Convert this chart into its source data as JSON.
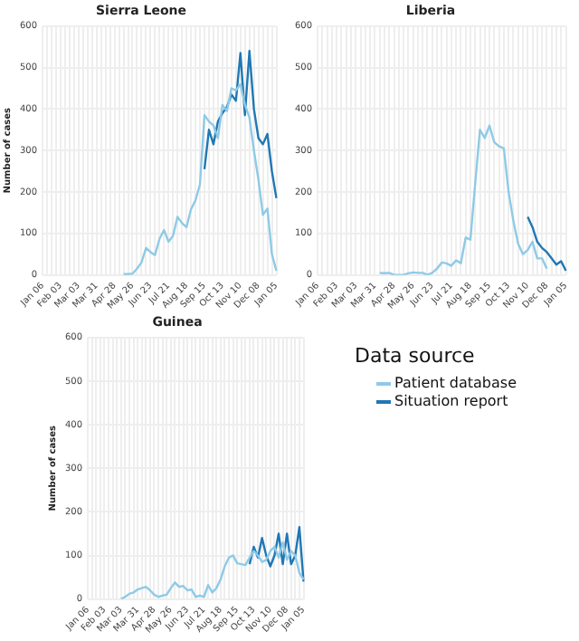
{
  "chart_data": [
    {
      "type": "line",
      "title": "Sierra Leone",
      "ylabel": "Number of cases",
      "ylim": [
        0,
        600
      ],
      "categories": [
        "Jan 06",
        null,
        null,
        null,
        "Feb 03",
        null,
        null,
        null,
        "Mar 03",
        null,
        null,
        null,
        "Mar 31",
        null,
        null,
        null,
        "Apr 28",
        null,
        null,
        null,
        "May 26",
        null,
        null,
        null,
        "Jun 23",
        null,
        null,
        null,
        "Jul 21",
        null,
        null,
        null,
        "Aug 18",
        null,
        null,
        null,
        "Sep 15",
        null,
        null,
        null,
        "Oct 13",
        null,
        null,
        null,
        "Nov 10",
        null,
        null,
        null,
        "Dec 08",
        null,
        null,
        null,
        "Jan 05"
      ],
      "yticks": [
        0,
        100,
        200,
        300,
        400,
        500,
        600
      ],
      "grid": true,
      "marker": "none",
      "line_style": "solid",
      "series": [
        {
          "color": "#8ecae6",
          "values": [
            null,
            null,
            null,
            null,
            null,
            null,
            null,
            null,
            null,
            null,
            null,
            null,
            null,
            null,
            null,
            null,
            null,
            null,
            2,
            2,
            3,
            15,
            30,
            65,
            55,
            48,
            87,
            108,
            80,
            94,
            140,
            125,
            115,
            158,
            180,
            218,
            385,
            370,
            360,
            330,
            410,
            395,
            450,
            445,
            460,
            410,
            380,
            300,
            230,
            145,
            160,
            50,
            10
          ]
        },
        {
          "color": "#1f78b4",
          "values": [
            null,
            null,
            null,
            null,
            null,
            null,
            null,
            null,
            null,
            null,
            null,
            null,
            null,
            null,
            null,
            null,
            null,
            null,
            null,
            null,
            null,
            null,
            null,
            null,
            null,
            null,
            null,
            null,
            null,
            null,
            null,
            null,
            null,
            null,
            null,
            null,
            255,
            350,
            315,
            370,
            390,
            405,
            435,
            420,
            535,
            385,
            540,
            400,
            330,
            315,
            340,
            250,
            185
          ]
        }
      ]
    },
    {
      "type": "line",
      "title": "Liberia",
      "ylim": [
        0,
        600
      ],
      "categories": [
        "Jan 06",
        null,
        null,
        null,
        "Feb 03",
        null,
        null,
        null,
        "Mar 03",
        null,
        null,
        null,
        "Mar 31",
        null,
        null,
        null,
        "Apr 28",
        null,
        null,
        null,
        "May 26",
        null,
        null,
        null,
        "Jun 23",
        null,
        null,
        null,
        "Jul 21",
        null,
        null,
        null,
        "Aug 18",
        null,
        null,
        null,
        "Sep 15",
        null,
        null,
        null,
        "Oct 13",
        null,
        null,
        null,
        "Nov 10",
        null,
        null,
        null,
        "Dec 08",
        null,
        null,
        null,
        "Jan 05"
      ],
      "yticks": [
        0,
        100,
        200,
        300,
        400,
        500,
        600
      ],
      "grid": true,
      "marker": "none",
      "line_style": "solid",
      "series": [
        {
          "color": "#8ecae6",
          "values": [
            null,
            null,
            null,
            null,
            null,
            null,
            null,
            null,
            null,
            null,
            null,
            null,
            null,
            5,
            4,
            5,
            0,
            0,
            0,
            4,
            6,
            5,
            5,
            0,
            5,
            15,
            30,
            28,
            22,
            35,
            28,
            90,
            85,
            220,
            350,
            330,
            360,
            320,
            310,
            305,
            200,
            130,
            75,
            50,
            60,
            80,
            40,
            40,
            15,
            null,
            null,
            null,
            null
          ]
        },
        {
          "color": "#1f78b4",
          "values": [
            null,
            null,
            null,
            null,
            null,
            null,
            null,
            null,
            null,
            null,
            null,
            null,
            null,
            null,
            null,
            null,
            null,
            null,
            null,
            null,
            null,
            null,
            null,
            null,
            null,
            null,
            null,
            null,
            null,
            null,
            null,
            null,
            null,
            null,
            null,
            null,
            null,
            null,
            null,
            null,
            null,
            null,
            null,
            null,
            140,
            115,
            80,
            65,
            55,
            40,
            25,
            33,
            10
          ]
        }
      ]
    },
    {
      "type": "line",
      "title": "Guinea",
      "ylabel": "Number of cases",
      "ylim": [
        0,
        600
      ],
      "categories": [
        "Jan 06",
        null,
        null,
        null,
        "Feb 03",
        null,
        null,
        null,
        "Mar 03",
        null,
        null,
        null,
        "Mar 31",
        null,
        null,
        null,
        "Apr 28",
        null,
        null,
        null,
        "May 26",
        null,
        null,
        null,
        "Jun 23",
        null,
        null,
        null,
        "Jul 21",
        null,
        null,
        null,
        "Aug 18",
        null,
        null,
        null,
        "Sep 15",
        null,
        null,
        null,
        "Oct 13",
        null,
        null,
        null,
        "Nov 10",
        null,
        null,
        null,
        "Dec 08",
        null,
        null,
        null,
        "Jan 05"
      ],
      "yticks": [
        0,
        100,
        200,
        300,
        400,
        500,
        600
      ],
      "grid": true,
      "marker": "none",
      "line_style": "solid",
      "legend": "right",
      "legend_title": "Data source",
      "series": [
        {
          "name": "Patient database",
          "color": "#8ecae6",
          "values": [
            null,
            null,
            null,
            null,
            null,
            null,
            null,
            null,
            0,
            5,
            12,
            15,
            22,
            25,
            28,
            20,
            10,
            5,
            8,
            10,
            25,
            38,
            28,
            30,
            20,
            22,
            5,
            8,
            5,
            32,
            15,
            25,
            45,
            75,
            95,
            100,
            82,
            80,
            78,
            95,
            110,
            100,
            85,
            90,
            110,
            120,
            95,
            130,
            90,
            110,
            100,
            60,
            45
          ]
        },
        {
          "name": "Situation report",
          "color": "#1f78b4",
          "values": [
            null,
            null,
            null,
            null,
            null,
            null,
            null,
            null,
            null,
            null,
            null,
            null,
            null,
            null,
            null,
            null,
            null,
            null,
            null,
            null,
            null,
            null,
            null,
            null,
            null,
            null,
            null,
            null,
            null,
            null,
            null,
            null,
            null,
            null,
            null,
            null,
            null,
            null,
            null,
            80,
            120,
            95,
            140,
            100,
            75,
            100,
            150,
            80,
            150,
            80,
            100,
            165,
            40
          ]
        }
      ]
    }
  ]
}
